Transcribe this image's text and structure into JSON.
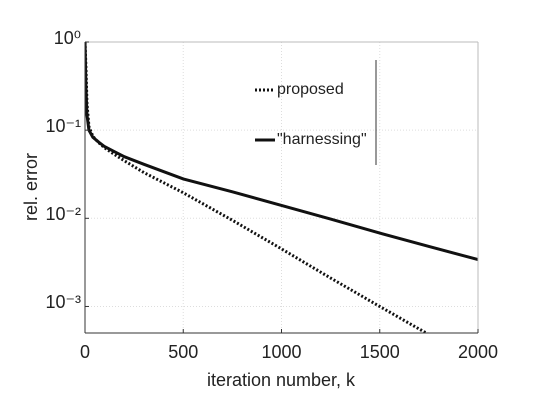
{
  "chart_data": {
    "type": "line",
    "xlabel": "iteration number, k",
    "ylabel": "rel. error",
    "x": [
      0,
      5,
      10,
      20,
      40,
      70,
      100,
      150,
      200,
      300,
      500,
      750,
      1000,
      1250,
      1500,
      1750,
      2000
    ],
    "series": [
      {
        "name": "proposed",
        "color": "#111111",
        "dash": "dotted",
        "values": [
          1,
          0.5,
          0.2,
          0.11,
          0.085,
          0.072,
          0.063,
          0.053,
          0.045,
          0.033,
          0.0195,
          0.0095,
          0.0045,
          0.0021,
          0.001,
          0.00048,
          null
        ]
      },
      {
        "name": "\"harnessing\"",
        "color": "#111111",
        "dash": "solid",
        "values": [
          1,
          0.3,
          0.15,
          0.1,
          0.083,
          0.073,
          0.065,
          0.057,
          0.05,
          0.041,
          0.028,
          0.02,
          0.014,
          0.0098,
          0.0068,
          0.0048,
          0.0034
        ]
      }
    ],
    "xlim": [
      0,
      2000
    ],
    "xticks": [
      0,
      500,
      1000,
      1500,
      2000
    ],
    "ylim": [
      0.0005,
      1
    ],
    "ylog": true,
    "yticks": [
      {
        "value": 0.001,
        "label": "10⁻³"
      },
      {
        "value": 0.01,
        "label": "10⁻²"
      },
      {
        "value": 0.1,
        "label": "10⁻¹"
      },
      {
        "value": 1,
        "label": "10⁰"
      }
    ],
    "grid": true
  }
}
